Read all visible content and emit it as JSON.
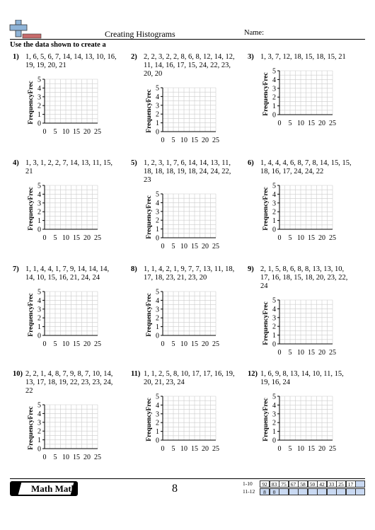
{
  "header": {
    "title": "Creating Histograms",
    "name_label": "Name:",
    "instruction": "Use the data shown to create a"
  },
  "graph": {
    "y_label": "FrequencyFrec",
    "y_ticks": [
      "0",
      "1",
      "2",
      "3",
      "4",
      "5"
    ],
    "x_ticks": [
      "0",
      "5",
      "10",
      "15",
      "20",
      "25"
    ]
  },
  "problems": [
    {
      "number": "1)",
      "data": "1, 6, 5, 6, 7, 14, 14, 13, 10, 16, 19, 19, 20, 21"
    },
    {
      "number": "2)",
      "data": "2, 2, 3, 2, 2, 8, 6, 8, 12, 14, 12, 11, 14, 16, 17, 15, 24, 22, 23, 20, 20"
    },
    {
      "number": "3)",
      "data": "1, 3, 7, 12, 18, 15, 18, 15, 21"
    },
    {
      "number": "4)",
      "data": "1, 3, 1, 2, 2, 7, 14, 13, 11, 15, 21"
    },
    {
      "number": "5)",
      "data": "1, 2, 3, 1, 7, 6, 14, 14, 13, 11, 18, 18, 18, 19, 18, 24, 24, 22, 23"
    },
    {
      "number": "6)",
      "data": "1, 4, 4, 4, 6, 8, 7, 8, 14, 15, 15, 18, 16, 17, 24, 24, 22"
    },
    {
      "number": "7)",
      "data": "1, 1, 4, 4, 1, 7, 9, 14, 14, 14, 14, 10, 15, 16, 21, 24, 24"
    },
    {
      "number": "8)",
      "data": "1, 1, 4, 2, 1, 9, 7, 7, 13, 11, 18, 17, 18, 23, 21, 23, 20"
    },
    {
      "number": "9)",
      "data": "2, 1, 5, 8, 6, 8, 8, 13, 13, 10, 17, 16, 18, 15, 18, 20, 23, 22, 24"
    },
    {
      "number": "10)",
      "data": "2, 2, 1, 4, 8, 7, 9, 8, 7, 10, 14, 13, 17, 18, 19, 22, 23, 23, 24, 22"
    },
    {
      "number": "11)",
      "data": "1, 1, 2, 5, 8, 10, 17, 17, 16, 19, 20, 21, 23, 24"
    },
    {
      "number": "12)",
      "data": "1, 6, 9, 8, 13, 14, 10, 11, 15, 19, 16, 24"
    }
  ],
  "footer": {
    "logo": "Math Math",
    "page": "8",
    "answer_key": [
      {
        "label": "1-10",
        "cells": [
          "92",
          "83",
          "75",
          "67",
          "58",
          "50",
          "42",
          "33",
          "25",
          "17"
        ]
      },
      {
        "label": "11-12",
        "cells": [
          "8",
          "0"
        ]
      }
    ]
  }
}
